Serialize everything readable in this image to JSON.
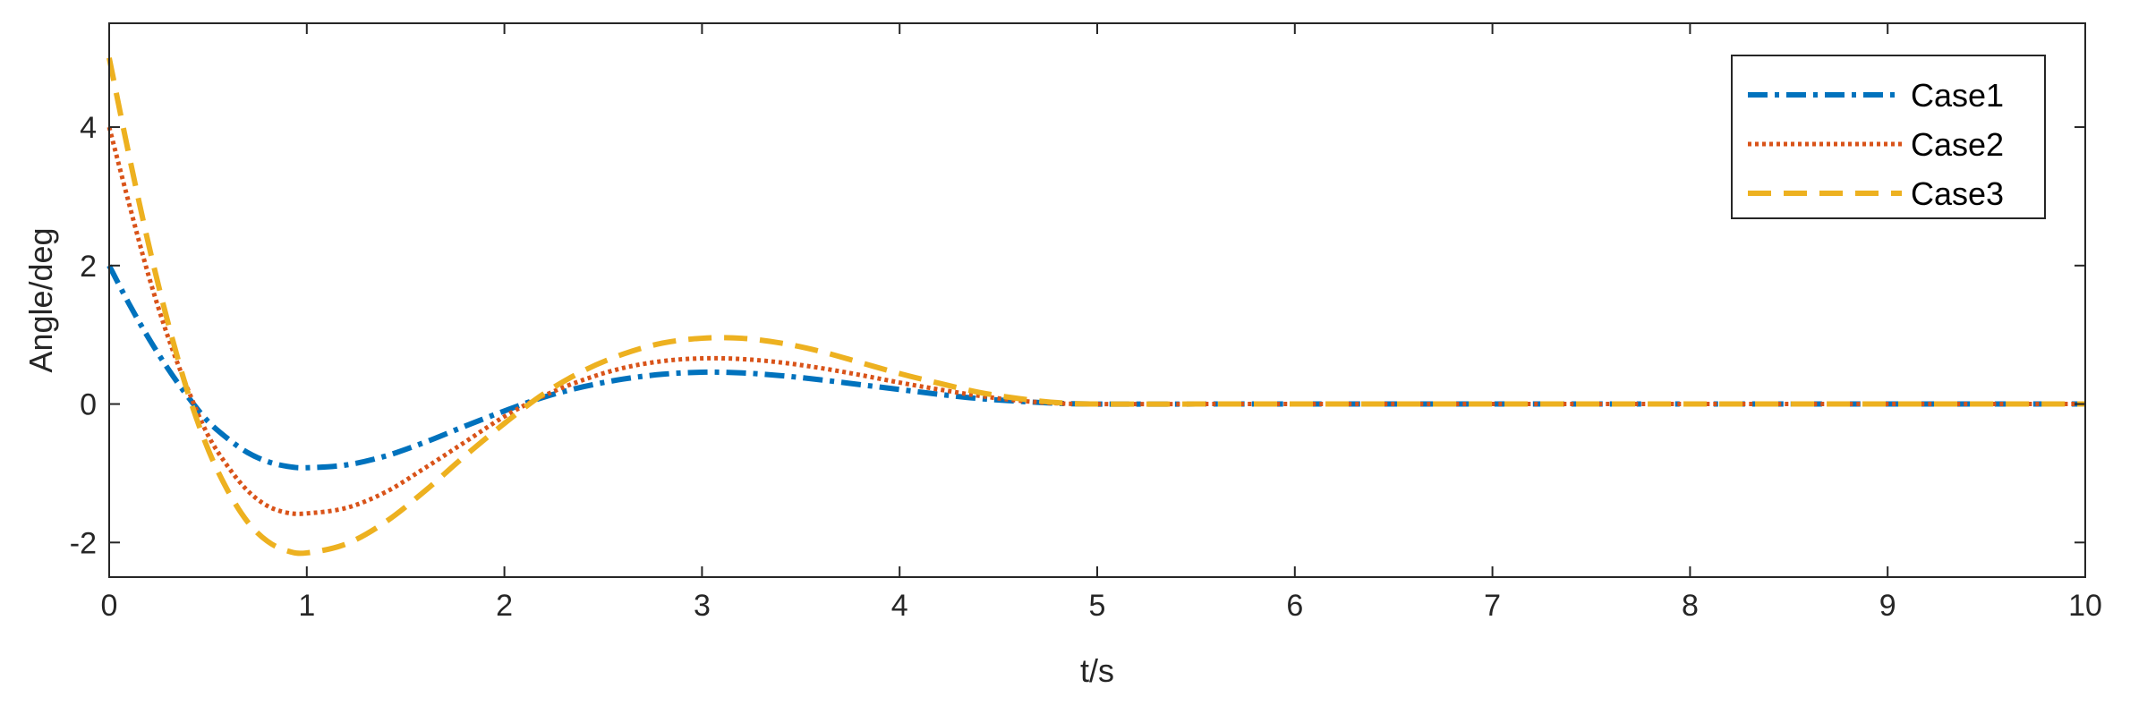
{
  "chart_data": {
    "type": "line",
    "xlabel": "t/s",
    "ylabel": "Angle/deg",
    "xlim": [
      0,
      10
    ],
    "ylim": [
      -2.5,
      5.5
    ],
    "xticks": [
      "0",
      "1",
      "2",
      "3",
      "4",
      "5",
      "6",
      "7",
      "8",
      "9",
      "10"
    ],
    "yticks": [
      "-2",
      "0",
      "2",
      "4"
    ],
    "grid": false,
    "legend_position": "top-right",
    "series": [
      {
        "name": "Case1",
        "color": "#0072BD",
        "line_style": "dash-dot",
        "x": [
          0,
          0.1,
          0.2,
          0.3,
          0.4,
          0.5,
          0.6,
          0.7,
          0.8,
          0.9,
          1.0,
          1.2,
          1.4,
          1.6,
          1.8,
          2.0,
          2.2,
          2.4,
          2.6,
          2.8,
          3.0,
          3.2,
          3.4,
          3.6,
          3.8,
          4.0,
          4.2,
          4.4,
          4.6,
          4.8,
          5.0,
          5.5,
          6,
          7,
          8,
          9,
          10
        ],
        "y": [
          2.0,
          1.45,
          0.95,
          0.5,
          0.1,
          -0.25,
          -0.5,
          -0.7,
          -0.83,
          -0.9,
          -0.92,
          -0.88,
          -0.75,
          -0.55,
          -0.32,
          -0.1,
          0.1,
          0.25,
          0.36,
          0.43,
          0.46,
          0.45,
          0.41,
          0.35,
          0.28,
          0.21,
          0.14,
          0.08,
          0.04,
          0.01,
          0.0,
          0.0,
          0.0,
          0.0,
          0.0,
          0.0,
          0.0
        ]
      },
      {
        "name": "Case2",
        "color": "#D95319",
        "line_style": "dotted",
        "x": [
          0,
          0.1,
          0.2,
          0.3,
          0.4,
          0.5,
          0.6,
          0.7,
          0.8,
          0.9,
          1.0,
          1.2,
          1.4,
          1.6,
          1.8,
          2.0,
          2.2,
          2.4,
          2.6,
          2.8,
          3.0,
          3.2,
          3.4,
          3.6,
          3.8,
          4.0,
          4.2,
          4.4,
          4.6,
          4.8,
          5.0,
          5.5,
          6,
          7,
          8,
          9,
          10
        ],
        "y": [
          4.0,
          2.9,
          1.85,
          0.95,
          0.2,
          -0.45,
          -0.9,
          -1.25,
          -1.47,
          -1.57,
          -1.58,
          -1.5,
          -1.27,
          -0.92,
          -0.55,
          -0.18,
          0.12,
          0.35,
          0.52,
          0.62,
          0.66,
          0.65,
          0.6,
          0.52,
          0.42,
          0.31,
          0.21,
          0.12,
          0.05,
          0.01,
          0.0,
          0.0,
          0.0,
          0.0,
          0.0,
          0.0,
          0.0
        ]
      },
      {
        "name": "Case3",
        "color": "#EDB120",
        "line_style": "dashed",
        "x": [
          0,
          0.1,
          0.2,
          0.3,
          0.4,
          0.5,
          0.6,
          0.7,
          0.8,
          0.9,
          1.0,
          1.2,
          1.4,
          1.6,
          1.8,
          2.0,
          2.2,
          2.4,
          2.6,
          2.8,
          3.0,
          3.2,
          3.4,
          3.6,
          3.8,
          4.0,
          4.2,
          4.4,
          4.6,
          4.8,
          5.0,
          5.5,
          6,
          7,
          8,
          9,
          10
        ],
        "y": [
          5.0,
          3.6,
          2.3,
          1.15,
          0.15,
          -0.65,
          -1.25,
          -1.7,
          -1.98,
          -2.12,
          -2.15,
          -2.02,
          -1.7,
          -1.25,
          -0.75,
          -0.28,
          0.15,
          0.48,
          0.72,
          0.88,
          0.95,
          0.95,
          0.88,
          0.76,
          0.6,
          0.44,
          0.3,
          0.17,
          0.08,
          0.02,
          0.0,
          0.0,
          0.0,
          0.0,
          0.0,
          0.0,
          0.0
        ]
      }
    ]
  }
}
